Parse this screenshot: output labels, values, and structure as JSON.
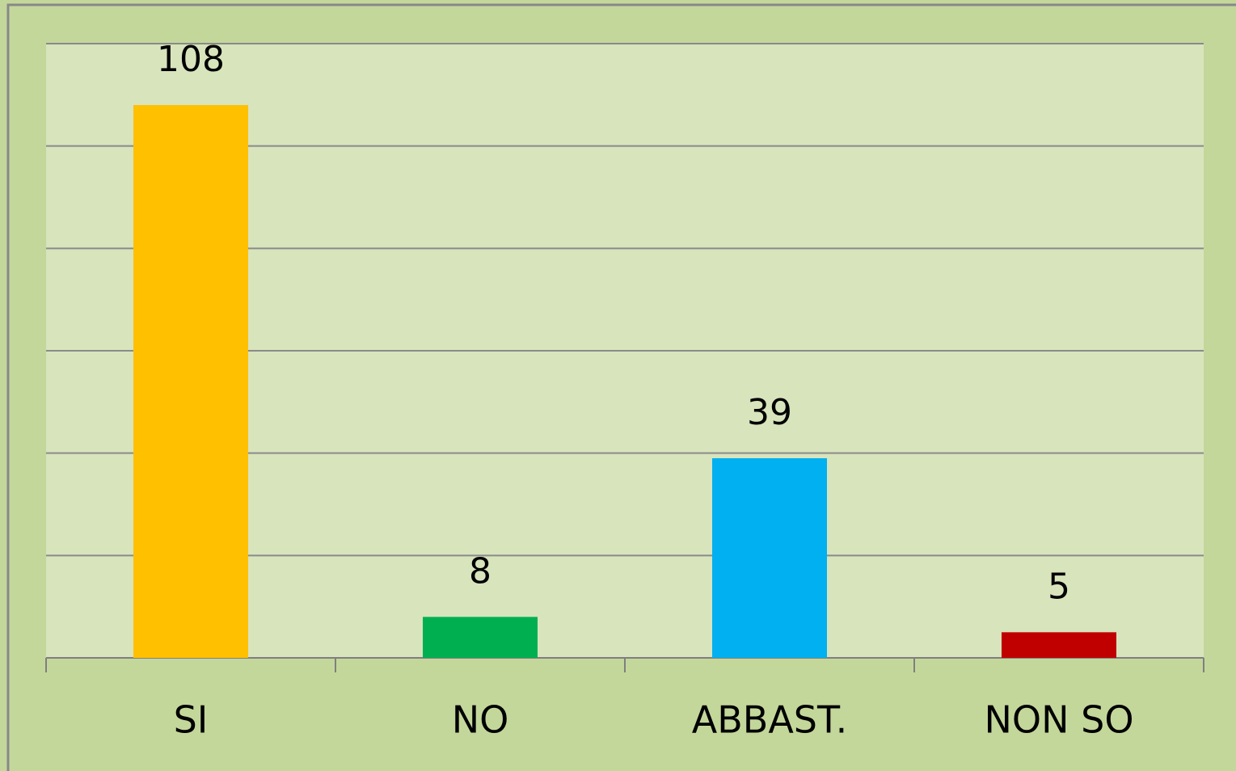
{
  "chart_data": {
    "type": "bar",
    "categories": [
      "SI",
      "NO",
      "ABBAST.",
      "NON SO"
    ],
    "values": [
      108,
      8,
      39,
      5
    ],
    "colors": [
      "#ffc000",
      "#00b050",
      "#00b0f0",
      "#c00000"
    ],
    "ylim": [
      0,
      120
    ],
    "yticks": [
      0,
      20,
      40,
      60,
      80,
      100,
      120
    ],
    "grid": true
  }
}
